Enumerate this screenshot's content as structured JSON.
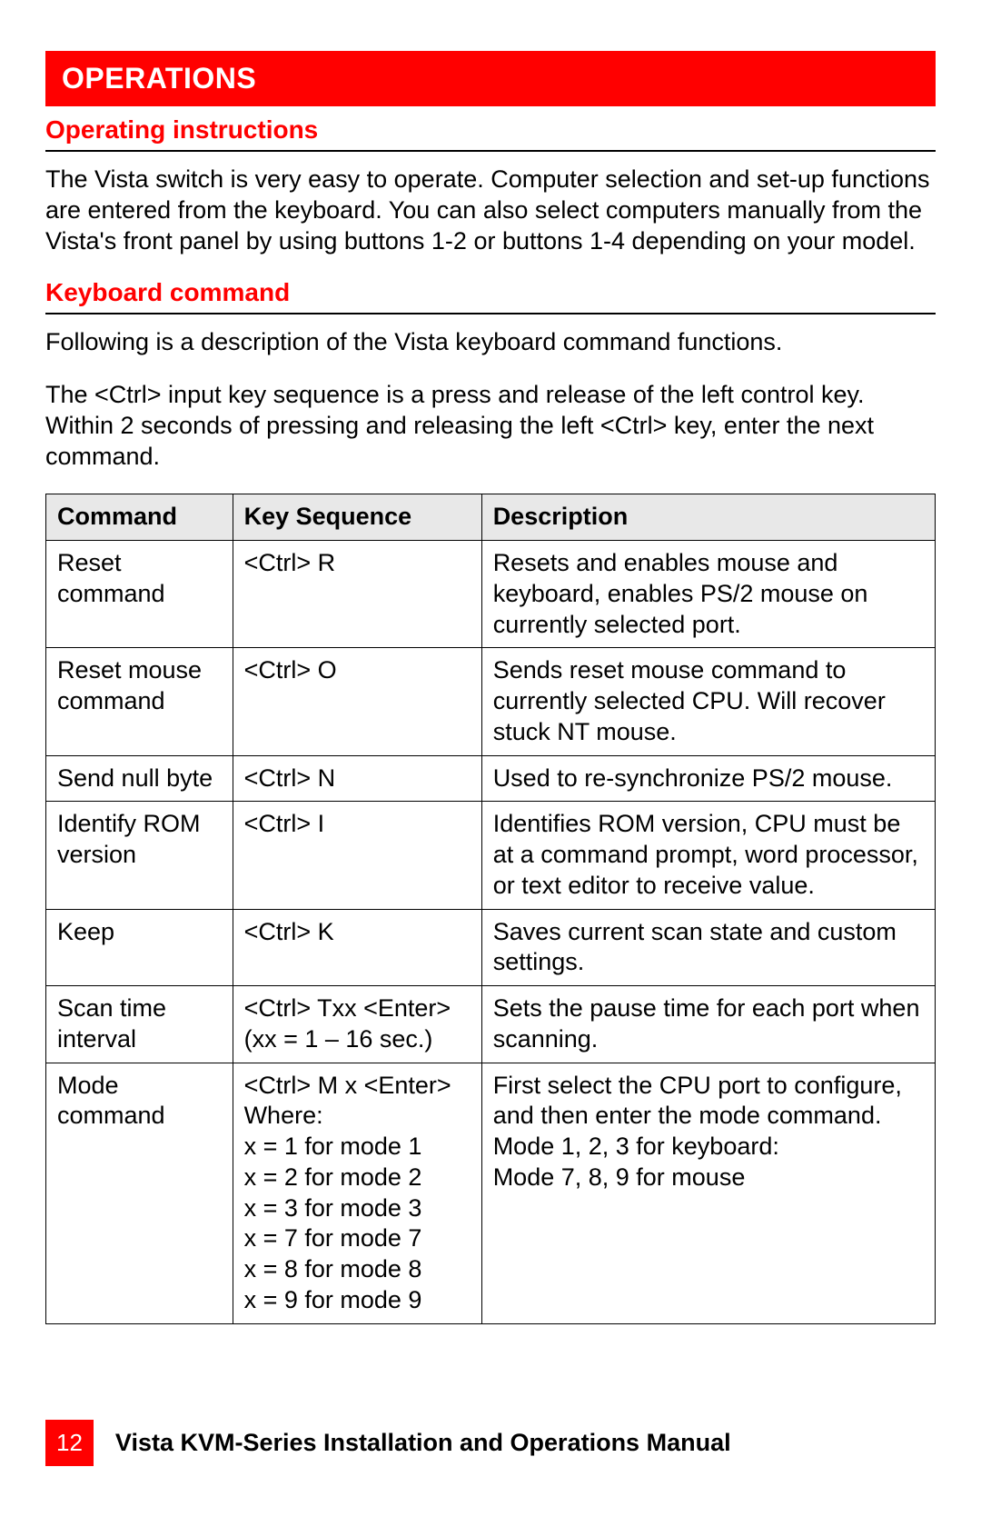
{
  "colors": {
    "accent": "#ff0000",
    "text": "#000000",
    "header_bg": "#e8e8e8",
    "page_bg": "#ffffff"
  },
  "typography": {
    "body_fontsize_pt": 20,
    "heading_fontsize_pt": 22,
    "font_family": "Arial"
  },
  "header": {
    "title": "OPERATIONS"
  },
  "sections": [
    {
      "title": "Operating instructions",
      "paragraphs": [
        "The Vista switch is very easy to operate. Computer selection and set-up functions are entered from the keyboard. You can also select computers manually from the Vista's front panel by using buttons 1-2 or buttons 1-4 depending on your model."
      ]
    },
    {
      "title": "Keyboard command",
      "paragraphs": [
        "Following is a description of the Vista keyboard command functions.",
        "The <Ctrl> input key sequence is a press and release of the left control key.  Within 2 seconds of pressing and releasing the left <Ctrl> key, enter the next command."
      ]
    }
  ],
  "table": {
    "type": "table",
    "columns": [
      "Command",
      "Key Sequence",
      "Description"
    ],
    "column_widths_pct": [
      21,
      28,
      51
    ],
    "header_bg": "#e8e8e8",
    "border_color": "#000000",
    "rows": [
      [
        "Reset command",
        "<Ctrl> R",
        "Resets and enables mouse and keyboard, enables PS/2 mouse on currently selected port."
      ],
      [
        "Reset mouse command",
        "<Ctrl> O",
        "Sends reset mouse command to currently selected CPU.  Will recover stuck NT mouse."
      ],
      [
        "Send null byte",
        "<Ctrl> N",
        "Used to re-synchronize PS/2 mouse."
      ],
      [
        "Identify ROM version",
        "<Ctrl> I",
        "Identifies ROM version, CPU must be at a command prompt, word processor, or text editor to receive value."
      ],
      [
        "Keep",
        "<Ctrl> K",
        "Saves current scan state and custom settings."
      ],
      [
        "Scan time interval",
        "<Ctrl> Txx <Enter>\n(xx = 1 – 16 sec.)",
        "Sets the pause time for each port when scanning."
      ],
      [
        "Mode command",
        "<Ctrl> M x <Enter>\nWhere:\nx = 1 for mode 1\nx = 2 for mode 2\nx = 3 for mode 3\nx = 7 for mode 7\nx = 8 for mode 8\nx = 9 for mode 9",
        "First select the CPU port to configure, and then enter the mode command.\nMode 1, 2, 3 for keyboard:\nMode 7, 8, 9 for mouse"
      ]
    ]
  },
  "footer": {
    "page_number": "12",
    "title": "Vista KVM-Series Installation and Operations Manual"
  }
}
